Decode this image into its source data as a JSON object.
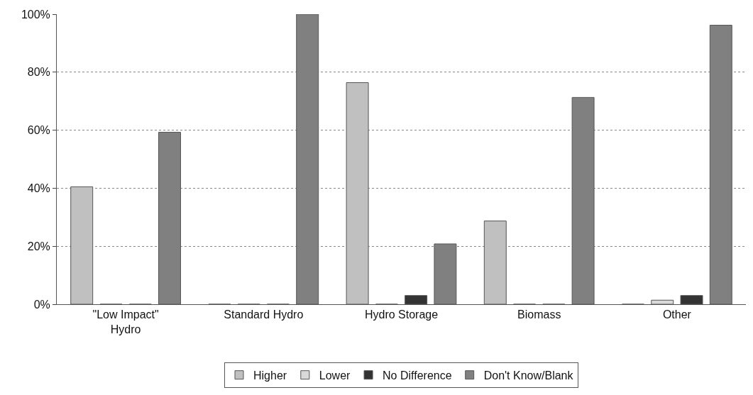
{
  "chart_data": {
    "type": "bar",
    "categories": [
      "\"Low Impact\" Hydro",
      "Standard Hydro",
      "Hydro Storage",
      "Biomass",
      "Other"
    ],
    "series": [
      {
        "name": "Higher",
        "color": "#c0c0c0",
        "values": [
          40.5,
          0,
          76.4,
          28.7,
          0
        ]
      },
      {
        "name": "Lower",
        "color": "#d9d9d9",
        "values": [
          0,
          0,
          0,
          0,
          1.4
        ]
      },
      {
        "name": "No Difference",
        "color": "#333333",
        "values": [
          0,
          0,
          3.0,
          0,
          3.0
        ]
      },
      {
        "name": "Don't Know/Blank",
        "color": "#808080",
        "values": [
          59.3,
          100,
          20.8,
          71.3,
          96.2
        ]
      }
    ],
    "ylim": [
      0,
      100
    ],
    "yticks": [
      {
        "value": 0,
        "label": "0%"
      },
      {
        "value": 20,
        "label": "20%"
      },
      {
        "value": 40,
        "label": "40%"
      },
      {
        "value": 60,
        "label": "60%"
      },
      {
        "value": 80,
        "label": "80%"
      },
      {
        "value": 100,
        "label": "100%"
      }
    ],
    "grid": "y",
    "legend": "bottom"
  }
}
